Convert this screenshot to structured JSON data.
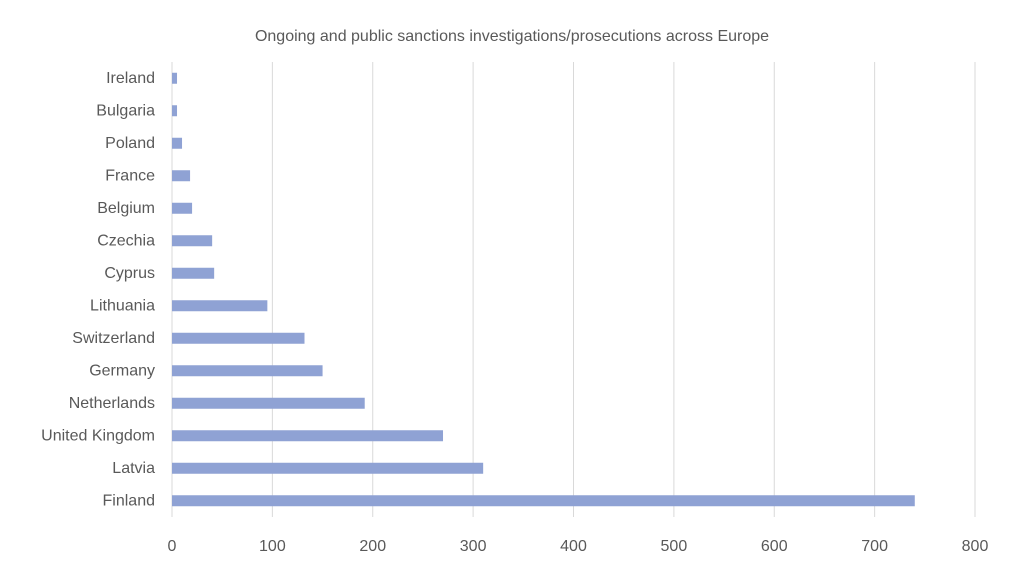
{
  "chart_data": {
    "type": "bar",
    "orientation": "horizontal",
    "title": "Ongoing and public sanctions investigations/prosecutions across Europe",
    "xlabel": "",
    "ylabel": "",
    "categories": [
      "Ireland",
      "Bulgaria",
      "Poland",
      "France",
      "Belgium",
      "Czechia",
      "Cyprus",
      "Lithuania",
      "Switzerland",
      "Germany",
      "Netherlands",
      "United Kingdom",
      "Latvia",
      "Finland"
    ],
    "values": [
      5,
      5,
      10,
      18,
      20,
      40,
      42,
      95,
      132,
      150,
      192,
      270,
      310,
      740
    ],
    "xlim": [
      0,
      800
    ],
    "xticks": [
      0,
      100,
      200,
      300,
      400,
      500,
      600,
      700,
      800
    ],
    "grid": "vertical",
    "legend": "none",
    "bar_color": "#8fa2d4",
    "grid_color": "#d9d9d9",
    "text_color": "#595959"
  }
}
